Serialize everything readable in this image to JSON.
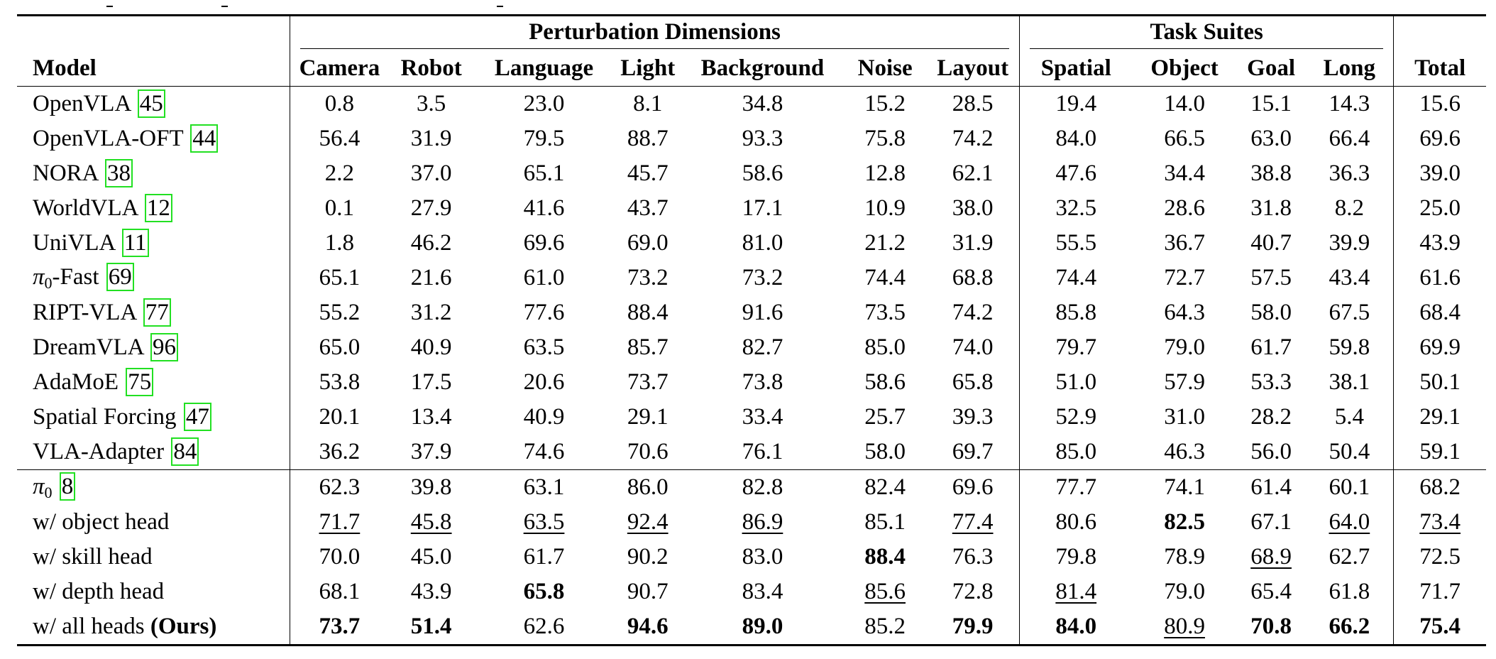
{
  "table": {
    "group_headers": {
      "perturbation": "Perturbation Dimensions",
      "task_suites": "Task Suites"
    },
    "columns": [
      "Model",
      "Camera",
      "Robot",
      "Language",
      "Light",
      "Background",
      "Noise",
      "Layout",
      "Spatial",
      "Object",
      "Goal",
      "Long",
      "Total"
    ],
    "baselines": [
      {
        "name": "OpenVLA",
        "cite": "45",
        "values": [
          "0.8",
          "3.5",
          "23.0",
          "8.1",
          "34.8",
          "15.2",
          "28.5",
          "19.4",
          "14.0",
          "15.1",
          "14.3",
          "15.6"
        ]
      },
      {
        "name": "OpenVLA-OFT",
        "cite": "44",
        "values": [
          "56.4",
          "31.9",
          "79.5",
          "88.7",
          "93.3",
          "75.8",
          "74.2",
          "84.0",
          "66.5",
          "63.0",
          "66.4",
          "69.6"
        ]
      },
      {
        "name": "NORA",
        "cite": "38",
        "values": [
          "2.2",
          "37.0",
          "65.1",
          "45.7",
          "58.6",
          "12.8",
          "62.1",
          "47.6",
          "34.4",
          "38.8",
          "36.3",
          "39.0"
        ]
      },
      {
        "name": "WorldVLA",
        "cite": "12",
        "values": [
          "0.1",
          "27.9",
          "41.6",
          "43.7",
          "17.1",
          "10.9",
          "38.0",
          "32.5",
          "28.6",
          "31.8",
          "8.2",
          "25.0"
        ]
      },
      {
        "name": "UniVLA",
        "cite": "11",
        "values": [
          "1.8",
          "46.2",
          "69.6",
          "69.0",
          "81.0",
          "21.2",
          "31.9",
          "55.5",
          "36.7",
          "40.7",
          "39.9",
          "43.9"
        ]
      },
      {
        "name_pi": "π",
        "name_sub": "0",
        "name_rest": "-Fast",
        "cite": "69",
        "values": [
          "65.1",
          "21.6",
          "61.0",
          "73.2",
          "73.2",
          "74.4",
          "68.8",
          "74.4",
          "72.7",
          "57.5",
          "43.4",
          "61.6"
        ]
      },
      {
        "name": "RIPT-VLA",
        "cite": "77",
        "values": [
          "55.2",
          "31.2",
          "77.6",
          "88.4",
          "91.6",
          "73.5",
          "74.2",
          "85.8",
          "64.3",
          "58.0",
          "67.5",
          "68.4"
        ]
      },
      {
        "name": "DreamVLA",
        "cite": "96",
        "values": [
          "65.0",
          "40.9",
          "63.5",
          "85.7",
          "82.7",
          "85.0",
          "74.0",
          "79.7",
          "79.0",
          "61.7",
          "59.8",
          "69.9"
        ]
      },
      {
        "name": "AdaMoE",
        "cite": "75",
        "values": [
          "53.8",
          "17.5",
          "20.6",
          "73.7",
          "73.8",
          "58.6",
          "65.8",
          "51.0",
          "57.9",
          "53.3",
          "38.1",
          "50.1"
        ]
      },
      {
        "name": "Spatial Forcing",
        "cite": "47",
        "values": [
          "20.1",
          "13.4",
          "40.9",
          "29.1",
          "33.4",
          "25.7",
          "39.3",
          "52.9",
          "31.0",
          "28.2",
          "5.4",
          "29.1"
        ]
      },
      {
        "name": "VLA-Adapter",
        "cite": "84",
        "values": [
          "36.2",
          "37.9",
          "74.6",
          "70.6",
          "76.1",
          "58.0",
          "69.7",
          "85.0",
          "46.3",
          "56.0",
          "50.4",
          "59.1"
        ]
      }
    ],
    "ablations": [
      {
        "name_pi": "π",
        "name_sub": "0",
        "cite": "8",
        "values": [
          "62.3",
          "39.8",
          "63.1",
          "86.0",
          "82.8",
          "82.4",
          "69.6",
          "77.7",
          "74.1",
          "61.4",
          "60.1",
          "68.2"
        ]
      },
      {
        "name": "w/ object head",
        "values": [
          "71.7",
          "45.8",
          "63.5",
          "92.4",
          "86.9",
          "85.1",
          "77.4",
          "80.6",
          "82.5",
          "67.1",
          "64.0",
          "73.4"
        ]
      },
      {
        "name": "w/ skill head",
        "values": [
          "70.0",
          "45.0",
          "61.7",
          "90.2",
          "83.0",
          "88.4",
          "76.3",
          "79.8",
          "78.9",
          "68.9",
          "62.7",
          "72.5"
        ]
      },
      {
        "name": "w/ depth head",
        "values": [
          "68.1",
          "43.9",
          "65.8",
          "90.7",
          "83.4",
          "85.6",
          "72.8",
          "81.4",
          "79.0",
          "65.4",
          "61.8",
          "71.7"
        ]
      },
      {
        "name": "w/ all heads",
        "name_bold": "(Ours)",
        "values": [
          "73.7",
          "51.4",
          "62.6",
          "94.6",
          "89.0",
          "85.2",
          "79.9",
          "84.0",
          "80.9",
          "70.8",
          "66.2",
          "75.4"
        ]
      }
    ]
  }
}
